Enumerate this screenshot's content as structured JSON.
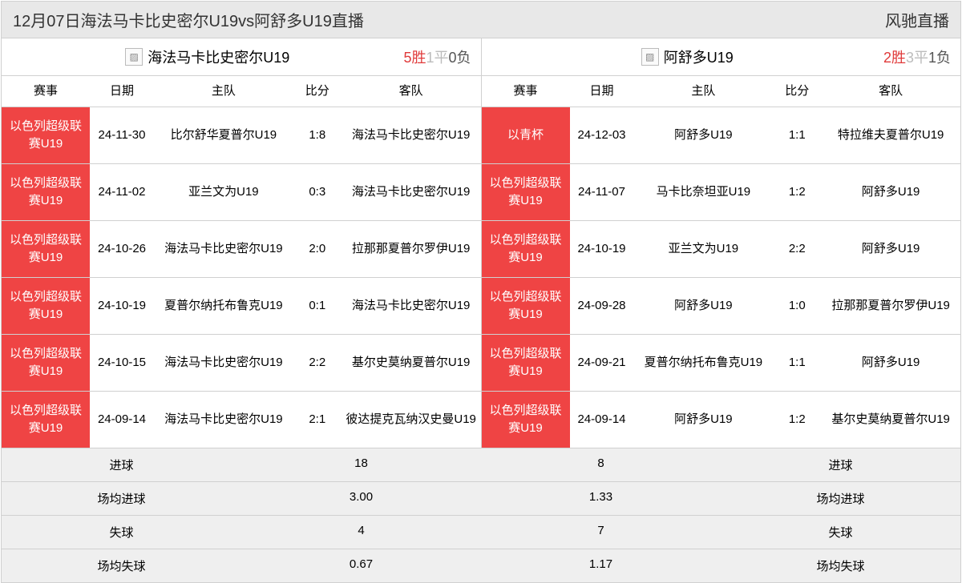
{
  "colors": {
    "header_bg": "#e8e8e8",
    "comp_bg": "#ef4444",
    "comp_fg": "#ffffff",
    "summary_bg": "#efefef",
    "win": "#e03a3a",
    "draw": "#bcbcbc",
    "loss": "#555555",
    "border": "#d0d0d0"
  },
  "title": "12月07日海法马卡比史密尔U19vs阿舒多U19直播",
  "brand": "风驰直播",
  "columns": {
    "comp": "赛事",
    "date": "日期",
    "home": "主队",
    "score": "比分",
    "away": "客队"
  },
  "left": {
    "team": "海法马卡比史密尔U19",
    "record": {
      "win_n": "5",
      "win_t": "胜",
      "draw_n": "1",
      "draw_t": "平",
      "loss_n": "0",
      "loss_t": "负"
    },
    "rows": [
      {
        "comp": "以色列超级联赛U19",
        "date": "24-11-30",
        "home": "比尔舒华夏普尔U19",
        "score": "1:8",
        "away": "海法马卡比史密尔U19"
      },
      {
        "comp": "以色列超级联赛U19",
        "date": "24-11-02",
        "home": "亚兰文为U19",
        "score": "0:3",
        "away": "海法马卡比史密尔U19"
      },
      {
        "comp": "以色列超级联赛U19",
        "date": "24-10-26",
        "home": "海法马卡比史密尔U19",
        "score": "2:0",
        "away": "拉那那夏普尔罗伊U19"
      },
      {
        "comp": "以色列超级联赛U19",
        "date": "24-10-19",
        "home": "夏普尔纳托布鲁克U19",
        "score": "0:1",
        "away": "海法马卡比史密尔U19"
      },
      {
        "comp": "以色列超级联赛U19",
        "date": "24-10-15",
        "home": "海法马卡比史密尔U19",
        "score": "2:2",
        "away": "基尔史莫纳夏普尔U19"
      },
      {
        "comp": "以色列超级联赛U19",
        "date": "24-09-14",
        "home": "海法马卡比史密尔U19",
        "score": "2:1",
        "away": "彼达提克瓦纳汉史曼U19"
      }
    ]
  },
  "right": {
    "team": "阿舒多U19",
    "record": {
      "win_n": "2",
      "win_t": "胜",
      "draw_n": "3",
      "draw_t": "平",
      "loss_n": "1",
      "loss_t": "负"
    },
    "rows": [
      {
        "comp": "以青杯",
        "date": "24-12-03",
        "home": "阿舒多U19",
        "score": "1:1",
        "away": "特拉维夫夏普尔U19"
      },
      {
        "comp": "以色列超级联赛U19",
        "date": "24-11-07",
        "home": "马卡比奈坦亚U19",
        "score": "1:2",
        "away": "阿舒多U19"
      },
      {
        "comp": "以色列超级联赛U19",
        "date": "24-10-19",
        "home": "亚兰文为U19",
        "score": "2:2",
        "away": "阿舒多U19"
      },
      {
        "comp": "以色列超级联赛U19",
        "date": "24-09-28",
        "home": "阿舒多U19",
        "score": "1:0",
        "away": "拉那那夏普尔罗伊U19"
      },
      {
        "comp": "以色列超级联赛U19",
        "date": "24-09-21",
        "home": "夏普尔纳托布鲁克U19",
        "score": "1:1",
        "away": "阿舒多U19"
      },
      {
        "comp": "以色列超级联赛U19",
        "date": "24-09-14",
        "home": "阿舒多U19",
        "score": "1:2",
        "away": "基尔史莫纳夏普尔U19"
      }
    ]
  },
  "summary": {
    "labels": {
      "goals": "进球",
      "avg_goals": "场均进球",
      "conceded": "失球",
      "avg_conceded": "场均失球"
    },
    "left": {
      "goals": "18",
      "avg_goals": "3.00",
      "conceded": "4",
      "avg_conceded": "0.67"
    },
    "right": {
      "goals": "8",
      "avg_goals": "1.33",
      "conceded": "7",
      "avg_conceded": "1.17"
    }
  }
}
